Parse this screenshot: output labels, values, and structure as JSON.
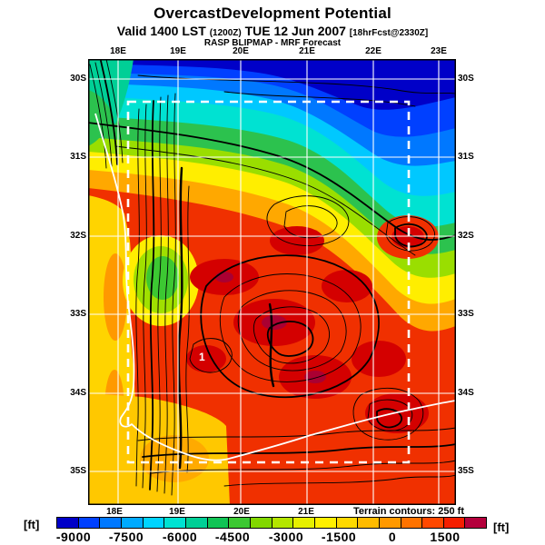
{
  "header": {
    "title": "OvercastDevelopment Potential",
    "valid": {
      "prefix": "Valid 1400 LST",
      "issue_time": "(1200Z)",
      "date": "TUE 12 Jun 2007",
      "forecast": "[18hrFcst@2330Z]"
    },
    "model_line": "RASP BLIPMAP - MRF Forecast"
  },
  "map": {
    "lon_top": [
      "18E",
      "19E",
      "20E",
      "21E",
      "22E",
      "23E"
    ],
    "lon_bottom": [
      "18E",
      "19E",
      "20E",
      "21E"
    ],
    "lat_left": [
      "30S",
      "31S",
      "32S",
      "33S",
      "34S",
      "35S"
    ],
    "lat_right": [
      "30S",
      "31S",
      "32S",
      "33S",
      "34S",
      "35S"
    ],
    "site_marker": "1",
    "terrain_note": "Terrain contours: 250 ft"
  },
  "colorbar": {
    "unit_left": "[ft]",
    "unit_right": "[ft]",
    "ticks": [
      "-9000",
      "-7500",
      "-6000",
      "-4500",
      "-3000",
      "-1500",
      "0",
      "1500"
    ],
    "colors": [
      "#0000c8",
      "#0040ff",
      "#0078ff",
      "#00aaff",
      "#00d4ff",
      "#00e2d2",
      "#00cf96",
      "#10c455",
      "#3cc832",
      "#82d800",
      "#b4e600",
      "#e6f000",
      "#fff000",
      "#ffd900",
      "#ffbb00",
      "#ff9900",
      "#ff7300",
      "#ff4800",
      "#f51e00",
      "#b4003c"
    ]
  },
  "chart_data": {
    "type": "heatmap",
    "title": "OvercastDevelopment Potential",
    "units": "ft",
    "scale_ticks": [
      -9000,
      -7500,
      -6000,
      -4500,
      -3000,
      -1500,
      0,
      1500
    ],
    "scale_step_per_cell": 750,
    "lon_labels": [
      "18E",
      "19E",
      "20E",
      "21E",
      "22E",
      "23E"
    ],
    "lat_labels": [
      "30S",
      "31S",
      "32S",
      "33S",
      "34S",
      "35S"
    ],
    "legend_position": "bottom",
    "field_summary": "Strongly negative (blue/cyan, -7500 to -9000 ft) across the north (30S-31S), grading through green and yellow to positive red/dark-red values (0 to +1500 ft) over the central and southern interior; yellow-orange along the west coast and south-west corner."
  }
}
